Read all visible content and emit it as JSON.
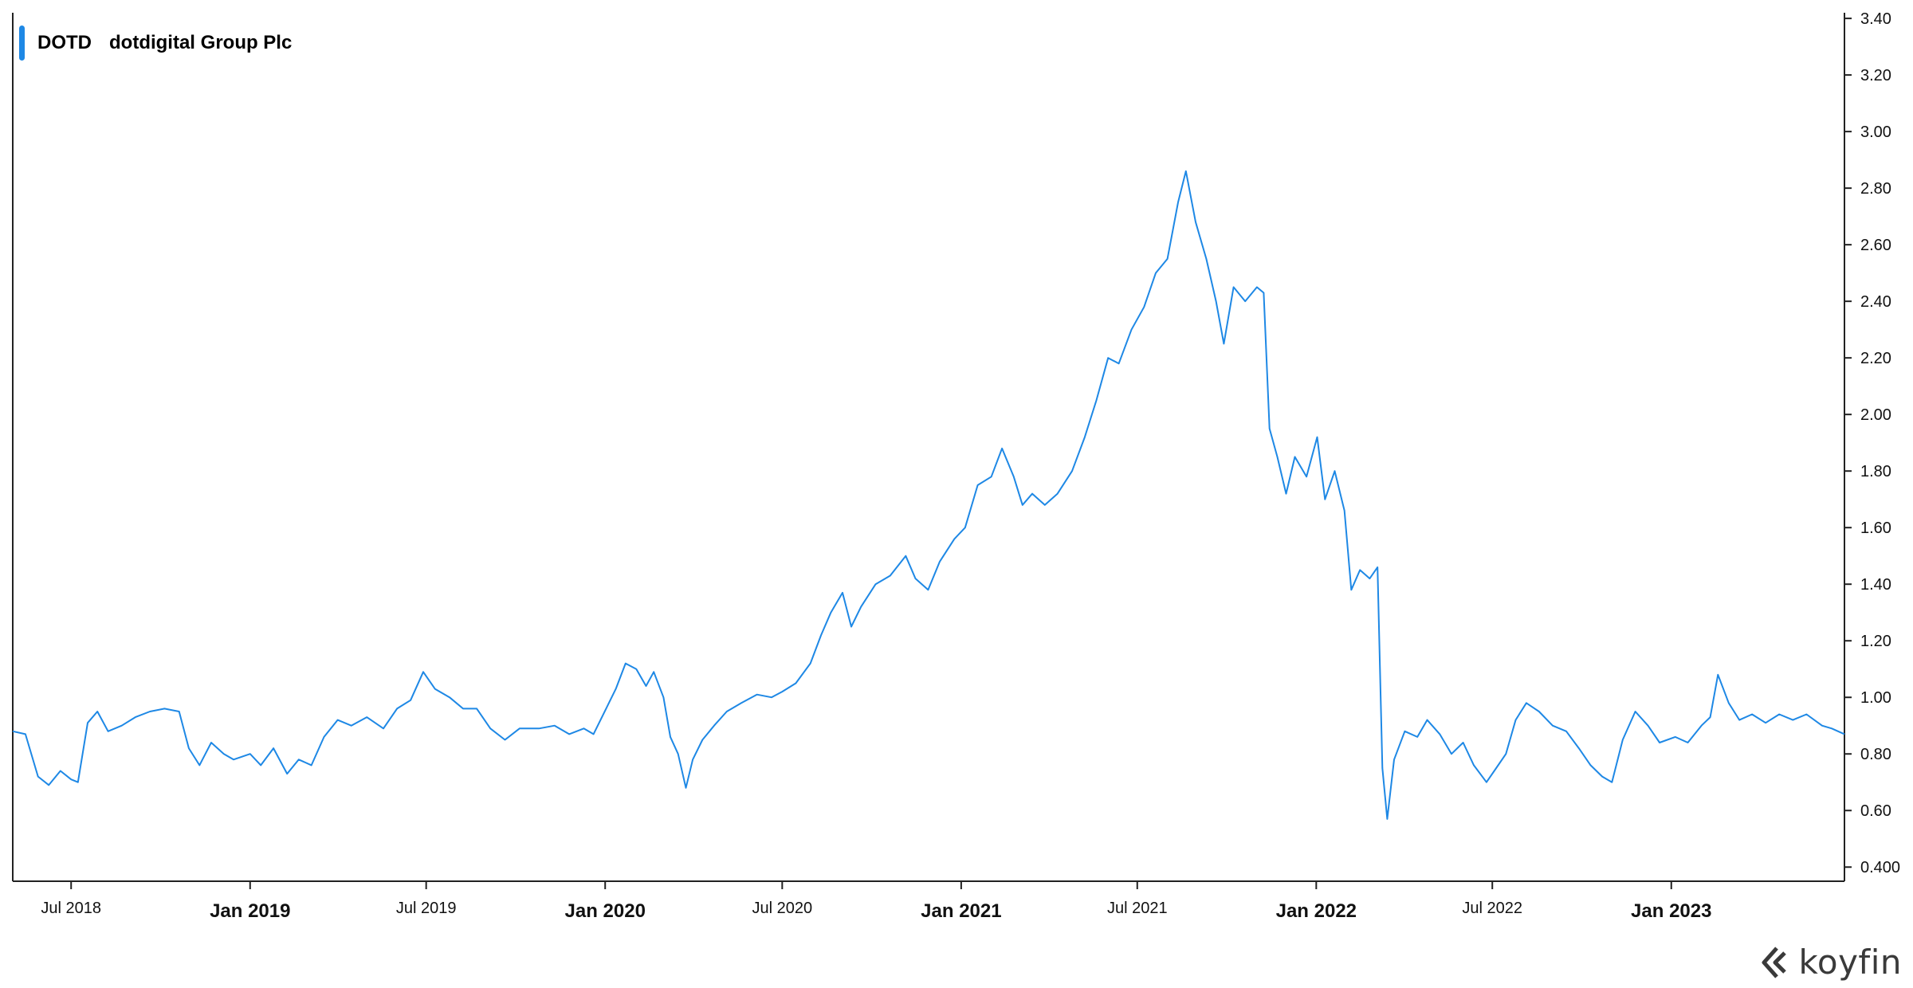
{
  "legend": {
    "ticker": "DOTD",
    "name": "dotdigital Group Plc",
    "color": "#1e88e5"
  },
  "brand": {
    "text": "koyfin",
    "icon": "koyfin-logo-icon"
  },
  "chart_data": {
    "type": "line",
    "title": "",
    "xlabel": "",
    "ylabel": "",
    "y_axis_position": "right",
    "ylim": [
      0.35,
      3.42
    ],
    "xlim": [
      "2018-05-02",
      "2023-06-28"
    ],
    "y_ticks": [
      {
        "v": 3.4,
        "label": "3.40"
      },
      {
        "v": 3.2,
        "label": "3.20"
      },
      {
        "v": 3.0,
        "label": "3.00"
      },
      {
        "v": 2.8,
        "label": "2.80"
      },
      {
        "v": 2.6,
        "label": "2.60"
      },
      {
        "v": 2.4,
        "label": "2.40"
      },
      {
        "v": 2.2,
        "label": "2.20"
      },
      {
        "v": 2.0,
        "label": "2.00"
      },
      {
        "v": 1.8,
        "label": "1.80"
      },
      {
        "v": 1.6,
        "label": "1.60"
      },
      {
        "v": 1.4,
        "label": "1.40"
      },
      {
        "v": 1.2,
        "label": "1.20"
      },
      {
        "v": 1.0,
        "label": "1.00"
      },
      {
        "v": 0.8,
        "label": "0.80"
      },
      {
        "v": 0.6,
        "label": "0.60"
      },
      {
        "v": 0.4,
        "label": "0.400"
      }
    ],
    "x_ticks": [
      {
        "date": "2018-07-01",
        "label": "Jul 2018",
        "major": false
      },
      {
        "date": "2019-01-01",
        "label": "Jan 2019",
        "major": true
      },
      {
        "date": "2019-07-01",
        "label": "Jul 2019",
        "major": false
      },
      {
        "date": "2020-01-01",
        "label": "Jan 2020",
        "major": true
      },
      {
        "date": "2020-07-01",
        "label": "Jul 2020",
        "major": false
      },
      {
        "date": "2021-01-01",
        "label": "Jan 2021",
        "major": true
      },
      {
        "date": "2021-07-01",
        "label": "Jul 2021",
        "major": false
      },
      {
        "date": "2022-01-01",
        "label": "Jan 2022",
        "major": true
      },
      {
        "date": "2022-07-01",
        "label": "Jul 2022",
        "major": false
      },
      {
        "date": "2023-01-01",
        "label": "Jan 2023",
        "major": true
      }
    ],
    "series": [
      {
        "name": "DOTD",
        "color": "#1e88e5",
        "points": [
          [
            "2018-05-02",
            0.88
          ],
          [
            "2018-05-15",
            0.87
          ],
          [
            "2018-05-28",
            0.72
          ],
          [
            "2018-06-08",
            0.69
          ],
          [
            "2018-06-20",
            0.74
          ],
          [
            "2018-07-01",
            0.71
          ],
          [
            "2018-07-08",
            0.7
          ],
          [
            "2018-07-18",
            0.91
          ],
          [
            "2018-07-28",
            0.95
          ],
          [
            "2018-08-08",
            0.88
          ],
          [
            "2018-08-22",
            0.9
          ],
          [
            "2018-09-05",
            0.93
          ],
          [
            "2018-09-20",
            0.95
          ],
          [
            "2018-10-05",
            0.96
          ],
          [
            "2018-10-20",
            0.95
          ],
          [
            "2018-10-30",
            0.82
          ],
          [
            "2018-11-10",
            0.76
          ],
          [
            "2018-11-22",
            0.84
          ],
          [
            "2018-12-05",
            0.8
          ],
          [
            "2018-12-15",
            0.78
          ],
          [
            "2019-01-01",
            0.8
          ],
          [
            "2019-01-12",
            0.76
          ],
          [
            "2019-01-25",
            0.82
          ],
          [
            "2019-02-08",
            0.73
          ],
          [
            "2019-02-20",
            0.78
          ],
          [
            "2019-03-05",
            0.76
          ],
          [
            "2019-03-18",
            0.86
          ],
          [
            "2019-04-01",
            0.92
          ],
          [
            "2019-04-15",
            0.9
          ],
          [
            "2019-05-01",
            0.93
          ],
          [
            "2019-05-18",
            0.89
          ],
          [
            "2019-06-01",
            0.96
          ],
          [
            "2019-06-15",
            0.99
          ],
          [
            "2019-06-28",
            1.09
          ],
          [
            "2019-07-10",
            1.03
          ],
          [
            "2019-07-25",
            1.0
          ],
          [
            "2019-08-08",
            0.96
          ],
          [
            "2019-08-22",
            0.96
          ],
          [
            "2019-09-05",
            0.89
          ],
          [
            "2019-09-20",
            0.85
          ],
          [
            "2019-10-05",
            0.89
          ],
          [
            "2019-10-25",
            0.89
          ],
          [
            "2019-11-10",
            0.9
          ],
          [
            "2019-11-25",
            0.87
          ],
          [
            "2019-12-10",
            0.89
          ],
          [
            "2019-12-20",
            0.87
          ],
          [
            "2020-01-02",
            0.96
          ],
          [
            "2020-01-12",
            1.03
          ],
          [
            "2020-01-22",
            1.12
          ],
          [
            "2020-02-02",
            1.1
          ],
          [
            "2020-02-12",
            1.04
          ],
          [
            "2020-02-20",
            1.09
          ],
          [
            "2020-03-01",
            1.0
          ],
          [
            "2020-03-08",
            0.86
          ],
          [
            "2020-03-16",
            0.8
          ],
          [
            "2020-03-24",
            0.68
          ],
          [
            "2020-03-31",
            0.78
          ],
          [
            "2020-04-10",
            0.85
          ],
          [
            "2020-04-22",
            0.9
          ],
          [
            "2020-05-05",
            0.95
          ],
          [
            "2020-05-20",
            0.98
          ],
          [
            "2020-06-05",
            1.01
          ],
          [
            "2020-06-20",
            1.0
          ],
          [
            "2020-07-01",
            1.02
          ],
          [
            "2020-07-15",
            1.05
          ],
          [
            "2020-07-30",
            1.12
          ],
          [
            "2020-08-10",
            1.22
          ],
          [
            "2020-08-20",
            1.3
          ],
          [
            "2020-09-01",
            1.37
          ],
          [
            "2020-09-10",
            1.25
          ],
          [
            "2020-09-20",
            1.32
          ],
          [
            "2020-10-05",
            1.4
          ],
          [
            "2020-10-20",
            1.43
          ],
          [
            "2020-11-05",
            1.5
          ],
          [
            "2020-11-15",
            1.42
          ],
          [
            "2020-11-28",
            1.38
          ],
          [
            "2020-12-10",
            1.48
          ],
          [
            "2020-12-25",
            1.56
          ],
          [
            "2021-01-05",
            1.6
          ],
          [
            "2021-01-18",
            1.75
          ],
          [
            "2021-02-01",
            1.78
          ],
          [
            "2021-02-12",
            1.88
          ],
          [
            "2021-02-24",
            1.78
          ],
          [
            "2021-03-05",
            1.68
          ],
          [
            "2021-03-15",
            1.72
          ],
          [
            "2021-03-28",
            1.68
          ],
          [
            "2021-04-10",
            1.72
          ],
          [
            "2021-04-25",
            1.8
          ],
          [
            "2021-05-08",
            1.92
          ],
          [
            "2021-05-20",
            2.05
          ],
          [
            "2021-06-01",
            2.2
          ],
          [
            "2021-06-12",
            2.18
          ],
          [
            "2021-06-25",
            2.3
          ],
          [
            "2021-07-08",
            2.38
          ],
          [
            "2021-07-20",
            2.5
          ],
          [
            "2021-08-01",
            2.55
          ],
          [
            "2021-08-12",
            2.75
          ],
          [
            "2021-08-20",
            2.86
          ],
          [
            "2021-08-30",
            2.68
          ],
          [
            "2021-09-10",
            2.55
          ],
          [
            "2021-09-20",
            2.4
          ],
          [
            "2021-09-28",
            2.25
          ],
          [
            "2021-10-08",
            2.45
          ],
          [
            "2021-10-20",
            2.4
          ],
          [
            "2021-11-01",
            2.45
          ],
          [
            "2021-11-08",
            2.43
          ],
          [
            "2021-11-14",
            1.95
          ],
          [
            "2021-11-22",
            1.85
          ],
          [
            "2021-12-01",
            1.72
          ],
          [
            "2021-12-10",
            1.85
          ],
          [
            "2021-12-22",
            1.78
          ],
          [
            "2022-01-02",
            1.92
          ],
          [
            "2022-01-10",
            1.7
          ],
          [
            "2022-01-20",
            1.8
          ],
          [
            "2022-01-30",
            1.66
          ],
          [
            "2022-02-06",
            1.38
          ],
          [
            "2022-02-15",
            1.45
          ],
          [
            "2022-02-25",
            1.42
          ],
          [
            "2022-03-05",
            1.46
          ],
          [
            "2022-03-10",
            0.75
          ],
          [
            "2022-03-15",
            0.57
          ],
          [
            "2022-03-22",
            0.78
          ],
          [
            "2022-04-02",
            0.88
          ],
          [
            "2022-04-15",
            0.86
          ],
          [
            "2022-04-25",
            0.92
          ],
          [
            "2022-05-08",
            0.87
          ],
          [
            "2022-05-20",
            0.8
          ],
          [
            "2022-06-01",
            0.84
          ],
          [
            "2022-06-12",
            0.76
          ],
          [
            "2022-06-25",
            0.7
          ],
          [
            "2022-07-05",
            0.75
          ],
          [
            "2022-07-15",
            0.8
          ],
          [
            "2022-07-25",
            0.92
          ],
          [
            "2022-08-05",
            0.98
          ],
          [
            "2022-08-18",
            0.95
          ],
          [
            "2022-09-01",
            0.9
          ],
          [
            "2022-09-15",
            0.88
          ],
          [
            "2022-09-28",
            0.82
          ],
          [
            "2022-10-10",
            0.76
          ],
          [
            "2022-10-22",
            0.72
          ],
          [
            "2022-11-01",
            0.7
          ],
          [
            "2022-11-12",
            0.85
          ],
          [
            "2022-11-25",
            0.95
          ],
          [
            "2022-12-08",
            0.9
          ],
          [
            "2022-12-20",
            0.84
          ],
          [
            "2023-01-05",
            0.86
          ],
          [
            "2023-01-18",
            0.84
          ],
          [
            "2023-02-01",
            0.9
          ],
          [
            "2023-02-10",
            0.93
          ],
          [
            "2023-02-18",
            1.08
          ],
          [
            "2023-03-01",
            0.98
          ],
          [
            "2023-03-12",
            0.92
          ],
          [
            "2023-03-25",
            0.94
          ],
          [
            "2023-04-08",
            0.91
          ],
          [
            "2023-04-22",
            0.94
          ],
          [
            "2023-05-06",
            0.92
          ],
          [
            "2023-05-20",
            0.94
          ],
          [
            "2023-06-05",
            0.9
          ],
          [
            "2023-06-15",
            0.89
          ],
          [
            "2023-06-28",
            0.87
          ]
        ]
      }
    ]
  }
}
